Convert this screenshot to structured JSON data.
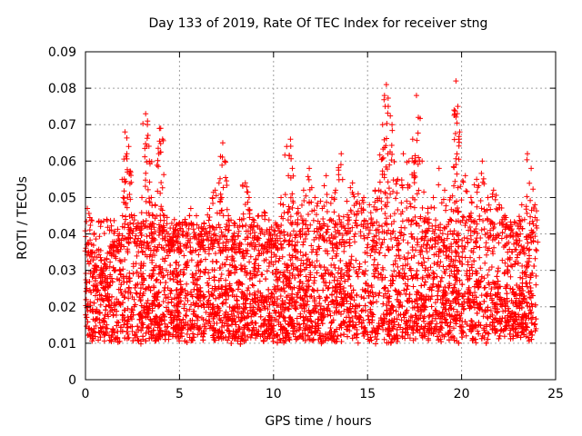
{
  "chart_data": {
    "type": "scatter",
    "title": "Day 133 of 2019, Rate Of TEC Index for receiver stng",
    "xlabel": "GPS time / hours",
    "ylabel": "ROTI / TECUs",
    "xlim": [
      0,
      25
    ],
    "ylim": [
      0,
      0.09
    ],
    "x_ticks": [
      "0",
      "5",
      "10",
      "15",
      "20",
      "25"
    ],
    "x_tick_values": [
      0,
      5,
      10,
      15,
      20,
      25
    ],
    "y_ticks": [
      "0",
      "0.01",
      "0.02",
      "0.03",
      "0.04",
      "0.05",
      "0.06",
      "0.07",
      "0.08",
      "0.09"
    ],
    "y_tick_values": [
      0,
      0.01,
      0.02,
      0.03,
      0.04,
      0.05,
      0.06,
      0.07,
      0.08,
      0.09
    ],
    "grid": true,
    "marker": "+",
    "color": "#ff0000",
    "series": [
      {
        "name": "ROTI",
        "x": [
          0.1,
          0.3,
          0.6,
          0.9,
          1.2,
          1.5,
          1.8,
          2.0,
          2.1,
          2.2,
          2.3,
          2.4,
          2.6,
          2.8,
          3.0,
          3.2,
          3.3,
          3.4,
          3.5,
          3.7,
          3.9,
          4.0,
          4.1,
          4.2,
          4.4,
          4.6,
          4.8,
          5.0,
          5.3,
          5.6,
          5.9,
          6.1,
          6.3,
          6.6,
          6.9,
          7.1,
          7.3,
          7.4,
          7.6,
          7.9,
          8.2,
          8.5,
          8.7,
          8.9,
          9.2,
          9.5,
          9.8,
          10.1,
          10.4,
          10.7,
          10.9,
          11.0,
          11.3,
          11.6,
          11.9,
          12.2,
          12.5,
          12.8,
          13.1,
          13.3,
          13.6,
          13.9,
          14.2,
          14.5,
          14.8,
          15.1,
          15.4,
          15.6,
          15.8,
          15.9,
          16.0,
          16.1,
          16.3,
          16.6,
          16.9,
          17.2,
          17.4,
          17.6,
          17.7,
          17.9,
          18.2,
          18.5,
          18.8,
          19.1,
          19.4,
          19.6,
          19.7,
          19.8,
          19.9,
          20.2,
          20.5,
          20.8,
          21.1,
          21.4,
          21.7,
          22.0,
          22.3,
          22.6,
          22.9,
          23.2,
          23.5,
          23.7,
          23.9
        ],
        "y": [
          0.047,
          0.035,
          0.03,
          0.028,
          0.026,
          0.037,
          0.04,
          0.05,
          0.068,
          0.062,
          0.064,
          0.057,
          0.045,
          0.043,
          0.05,
          0.073,
          0.071,
          0.06,
          0.05,
          0.048,
          0.062,
          0.069,
          0.066,
          0.045,
          0.04,
          0.039,
          0.041,
          0.043,
          0.044,
          0.047,
          0.045,
          0.04,
          0.043,
          0.047,
          0.052,
          0.054,
          0.065,
          0.06,
          0.045,
          0.043,
          0.044,
          0.054,
          0.05,
          0.044,
          0.045,
          0.046,
          0.04,
          0.043,
          0.05,
          0.064,
          0.066,
          0.058,
          0.047,
          0.052,
          0.058,
          0.05,
          0.049,
          0.056,
          0.05,
          0.052,
          0.062,
          0.049,
          0.054,
          0.051,
          0.05,
          0.048,
          0.052,
          0.052,
          0.07,
          0.078,
          0.081,
          0.075,
          0.07,
          0.055,
          0.062,
          0.06,
          0.066,
          0.078,
          0.072,
          0.06,
          0.047,
          0.05,
          0.058,
          0.052,
          0.05,
          0.074,
          0.082,
          0.075,
          0.068,
          0.056,
          0.05,
          0.055,
          0.06,
          0.05,
          0.052,
          0.048,
          0.045,
          0.042,
          0.04,
          0.048,
          0.062,
          0.058,
          0.048
        ],
        "density_band": [
          0.005,
          0.032
        ]
      }
    ]
  }
}
